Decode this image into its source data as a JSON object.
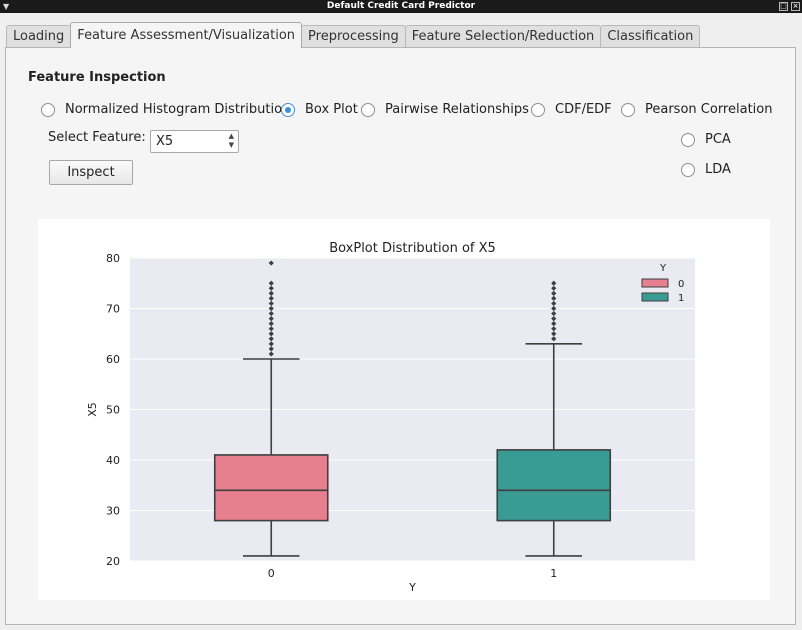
{
  "window": {
    "title": "Default Credit Card Predictor"
  },
  "tabs": [
    {
      "label": "Loading"
    },
    {
      "label": "Feature Assessment/Visualization"
    },
    {
      "label": "Preprocessing"
    },
    {
      "label": "Feature Selection/Reduction"
    },
    {
      "label": "Classification"
    }
  ],
  "inspection": {
    "title": "Feature Inspection",
    "options": [
      {
        "label": "Normalized Histogram Distribution",
        "checked": false
      },
      {
        "label": "Box Plot",
        "checked": true
      },
      {
        "label": "Pairwise Relationships",
        "checked": false
      },
      {
        "label": "CDF/EDF",
        "checked": false
      },
      {
        "label": "Pearson Correlation",
        "checked": false
      },
      {
        "label": "PCA",
        "checked": false
      },
      {
        "label": "LDA",
        "checked": false
      }
    ],
    "select_label": "Select Feature:",
    "feature_value": "X5",
    "inspect_label": "Inspect"
  },
  "chart_data": {
    "type": "box",
    "title": "BoxPlot Distribution of X5",
    "xlabel": "Y",
    "ylabel": "X5",
    "ylim": [
      20,
      80
    ],
    "yticks": [
      20,
      30,
      40,
      50,
      60,
      70,
      80
    ],
    "categories": [
      "0",
      "1"
    ],
    "legend": {
      "title": "Y",
      "entries": [
        "0",
        "1"
      ],
      "placement": "top-right"
    },
    "colors": [
      "#e67f8f",
      "#3a9b94"
    ],
    "boxes": [
      {
        "category": "0",
        "min": 21,
        "q1": 28,
        "median": 34,
        "q3": 41,
        "max": 60,
        "outliers": [
          61,
          62,
          63,
          64,
          65,
          66,
          67,
          68,
          69,
          70,
          71,
          72,
          73,
          74,
          75,
          79
        ]
      },
      {
        "category": "1",
        "min": 21,
        "q1": 28,
        "median": 34,
        "q3": 42,
        "max": 63,
        "outliers": [
          64,
          65,
          66,
          67,
          68,
          69,
          70,
          71,
          72,
          73,
          74,
          75
        ]
      }
    ]
  }
}
